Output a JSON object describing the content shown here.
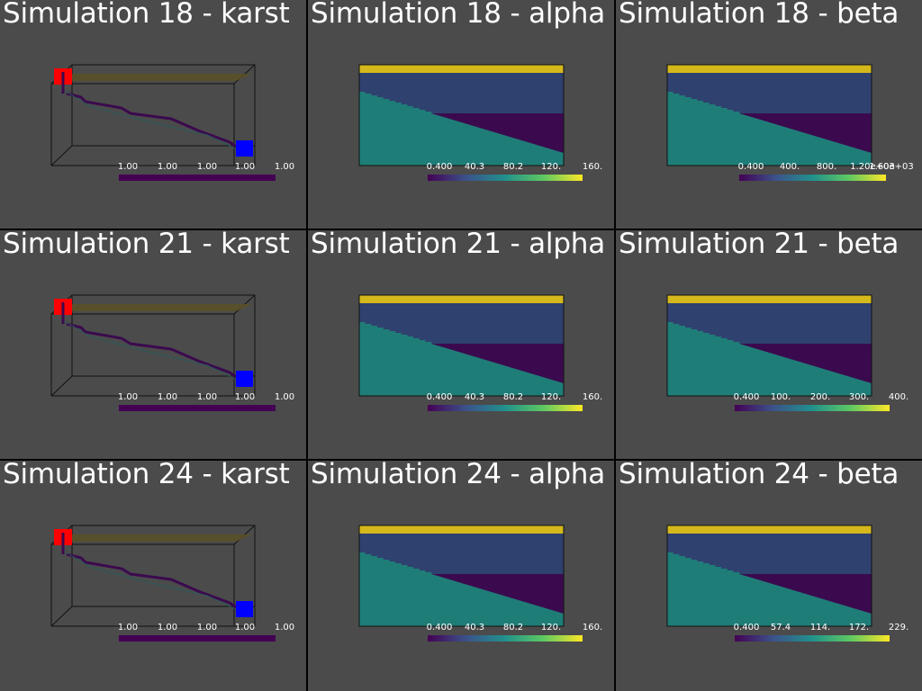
{
  "panels": [
    {
      "title": "Simulation 18 - karst",
      "kind": "karst",
      "ticks": [
        "1.00",
        "1.00",
        "1.00",
        "1.00",
        "1.00"
      ]
    },
    {
      "title": "Simulation 18 - alpha",
      "kind": "field",
      "ticks": [
        "0.400",
        "40.3",
        "80.2",
        "120.",
        "160."
      ]
    },
    {
      "title": "Simulation 18 - beta",
      "kind": "field",
      "ticks": [
        "0.400",
        "400.",
        "800.",
        "1.20e+03",
        "1.60e+03"
      ]
    },
    {
      "title": "Simulation 21 - karst",
      "kind": "karst",
      "ticks": [
        "1.00",
        "1.00",
        "1.00",
        "1.00",
        "1.00"
      ]
    },
    {
      "title": "Simulation 21 - alpha",
      "kind": "field",
      "ticks": [
        "0.400",
        "40.3",
        "80.2",
        "120.",
        "160."
      ]
    },
    {
      "title": "Simulation 21 - beta",
      "kind": "field",
      "ticks": [
        "0.400",
        "100.",
        "200.",
        "300.",
        "400."
      ]
    },
    {
      "title": "Simulation 24 - karst",
      "kind": "karst",
      "ticks": [
        "1.00",
        "1.00",
        "1.00",
        "1.00",
        "1.00"
      ]
    },
    {
      "title": "Simulation 24 - alpha",
      "kind": "field",
      "ticks": [
        "0.400",
        "40.3",
        "80.2",
        "120.",
        "160."
      ]
    },
    {
      "title": "Simulation 24 - beta",
      "kind": "field",
      "ticks": [
        "0.400",
        "57.4",
        "114.",
        "172.",
        "229."
      ]
    }
  ],
  "colors": {
    "panel_bg": "#4b4b4b",
    "layer_top": "#d4b81c",
    "layer_mid": "#2f416e",
    "layer_lower": "#1f7d78",
    "layer_wedge": "#3b0a4e",
    "karst_inlet": "#ff0000",
    "karst_outlet": "#0000ff",
    "karst_conduit": "#3b0a4e",
    "karst_cbar": "#440154"
  }
}
